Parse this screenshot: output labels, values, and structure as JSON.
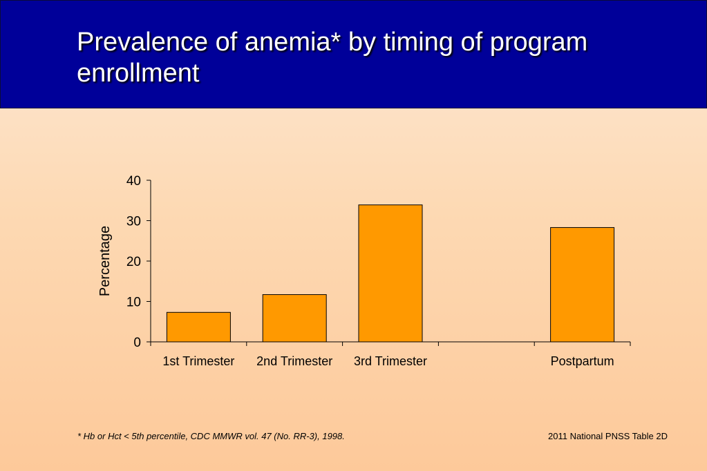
{
  "slide": {
    "title": "Prevalence of anemia* by timing of program enrollment",
    "footnote": "*  Hb or Hct < 5th percentile, CDC MMWR vol. 47 (No. RR-3), 1998.",
    "source": "2011 National PNSS Table 2D"
  },
  "colors": {
    "title_bar": "#000099",
    "bar_fill": "#ff9900",
    "bar_stroke": "#000000"
  },
  "chart_data": {
    "type": "bar",
    "categories": [
      "1st Trimester",
      "2nd Trimester",
      "3rd Trimester",
      "",
      "Postpartum"
    ],
    "values": [
      7.3,
      11.7,
      33.9,
      null,
      28.3
    ],
    "title": "",
    "xlabel": "",
    "ylabel": "Percentage",
    "ylim": [
      0,
      40
    ],
    "yticks": [
      0,
      10,
      20,
      30,
      40
    ],
    "grid": false,
    "legend": "none"
  }
}
